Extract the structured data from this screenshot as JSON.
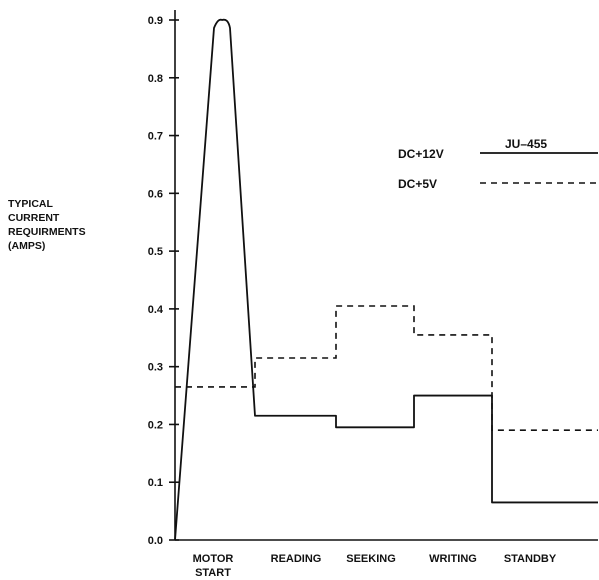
{
  "chart_data": {
    "type": "line",
    "title": "JU–455",
    "ylabel_lines": [
      "TYPICAL",
      "CURRENT",
      "REQUIRMENTS",
      "(AMPS)"
    ],
    "categories": [
      [
        "MOTOR",
        "START"
      ],
      [
        "READING"
      ],
      [
        "SEEKING"
      ],
      [
        "WRITING"
      ],
      [
        "STANDBY"
      ]
    ],
    "ylim": [
      0,
      0.9
    ],
    "yticks": [
      "0.0",
      "0.1",
      "0.2",
      "0.3",
      "0.4",
      "0.5",
      "0.6",
      "0.7",
      "0.8",
      "0.9"
    ],
    "series": [
      {
        "name": "DC+12V",
        "style": "solid",
        "peak": 0.9,
        "values": [
          0.9,
          0.215,
          0.195,
          0.25,
          0.065
        ]
      },
      {
        "name": "DC+5V",
        "style": "dashed",
        "values": [
          0.265,
          0.315,
          0.405,
          0.355,
          0.19
        ]
      }
    ],
    "legend_position": "top-right",
    "grid": false
  }
}
